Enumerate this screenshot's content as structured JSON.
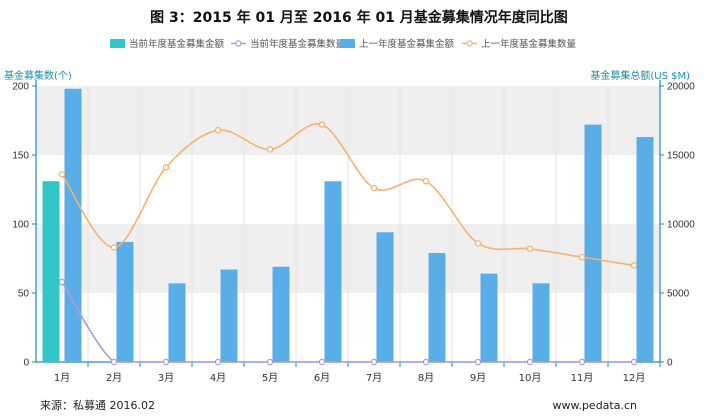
{
  "chart_data": {
    "type": "bar",
    "title": "图 3：2015 年 01 月至 2016 年 01 月基金募集情况年度同比图",
    "categories": [
      "1月",
      "2月",
      "3月",
      "4月",
      "5月",
      "6月",
      "7月",
      "8月",
      "9月",
      "10月",
      "11月",
      "12月"
    ],
    "y_left": {
      "label": "基金募集数(个)",
      "ylim": [
        0,
        200
      ],
      "ticks": [
        0,
        50,
        100,
        150,
        200
      ]
    },
    "y_right": {
      "label": "基金募集总额(US $M)",
      "ylim": [
        0,
        20000
      ],
      "ticks": [
        0,
        5000,
        10000,
        15000,
        20000
      ]
    },
    "series": [
      {
        "name": "当前年度基金募集金额",
        "kind": "bar",
        "axis": "right",
        "color": "#33c6c9",
        "values": [
          13100,
          null,
          null,
          null,
          null,
          null,
          null,
          null,
          null,
          null,
          null,
          null
        ]
      },
      {
        "name": "当前年度基金募集数量",
        "kind": "line",
        "axis": "left",
        "color": "#a99fd8",
        "values": [
          58,
          0,
          0,
          0,
          0,
          0,
          0,
          0,
          0,
          0,
          0,
          0
        ]
      },
      {
        "name": "上一年度基金募集金额",
        "kind": "bar",
        "axis": "right",
        "color": "#5aaee8",
        "values": [
          19800,
          8700,
          5700,
          6700,
          6900,
          13100,
          9400,
          7900,
          6400,
          5700,
          17200,
          16300
        ]
      },
      {
        "name": "上一年度基金募集数量",
        "kind": "line",
        "axis": "left",
        "color": "#f7b26d",
        "values": [
          136,
          83,
          141,
          168,
          154,
          172,
          126,
          131,
          86,
          82,
          76,
          70
        ]
      }
    ],
    "grid": true,
    "legend_position": "top"
  },
  "footer": {
    "source": "来源：私募通  2016.02",
    "website": "www.pedata.cn"
  }
}
